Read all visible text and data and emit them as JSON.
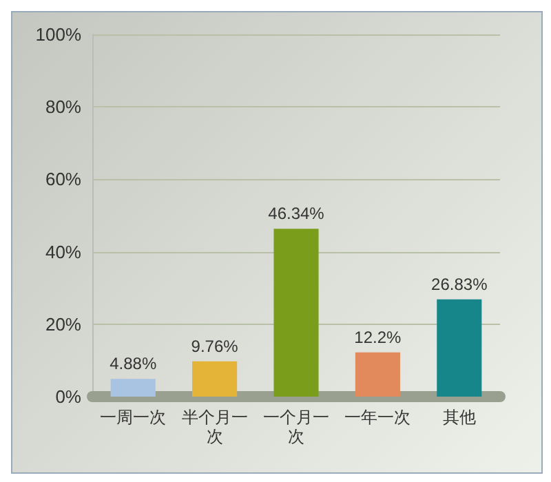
{
  "chart_data": {
    "type": "bar",
    "categories": [
      "一周一次",
      "半个月一次",
      "一个月一次",
      "一年一次",
      "其他"
    ],
    "values": [
      4.88,
      9.76,
      46.34,
      12.2,
      26.83
    ],
    "colors": [
      "#a9c3e3",
      "#e3b437",
      "#7a9e1c",
      "#e38a5c",
      "#17868a"
    ],
    "value_labels": [
      "4.88%",
      "9.76%",
      "46.34%",
      "12.2%",
      "26.83%"
    ],
    "ylim": [
      0,
      100
    ],
    "yticks": [
      {
        "value": 0,
        "label": "0%"
      },
      {
        "value": 20,
        "label": "20%"
      },
      {
        "value": 40,
        "label": "40%"
      },
      {
        "value": 60,
        "label": "60%"
      },
      {
        "value": 80,
        "label": "80%"
      },
      {
        "value": 100,
        "label": "100%"
      }
    ],
    "grid": "y"
  }
}
